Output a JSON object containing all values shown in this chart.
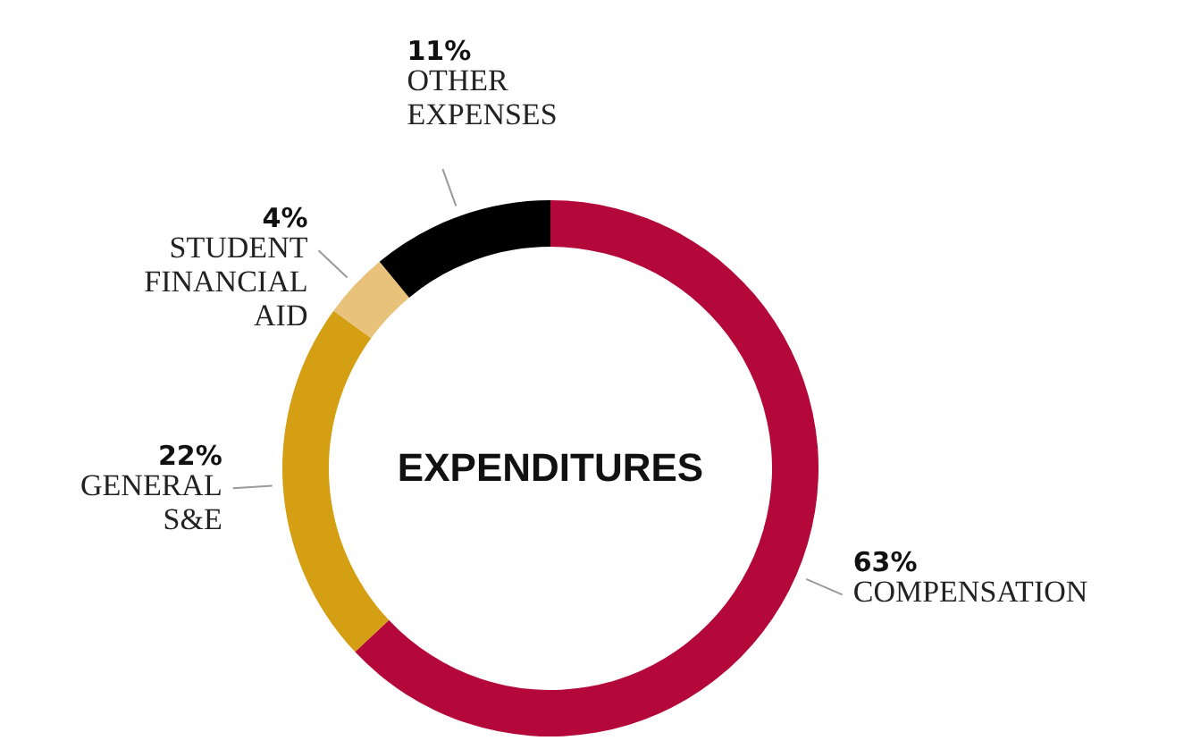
{
  "chart_data": {
    "type": "donut",
    "title": "EXPENDITURES",
    "categories": [
      "COMPENSATION",
      "GENERAL S&E",
      "STUDENT FINANCIAL AID",
      "OTHER EXPENSES"
    ],
    "values": [
      63,
      22,
      4,
      11
    ],
    "colors": [
      "#b5083a",
      "#d49f12",
      "#e8c27a",
      "#000000"
    ],
    "value_labels": [
      "63%",
      "22%",
      "4%",
      "11%"
    ]
  }
}
